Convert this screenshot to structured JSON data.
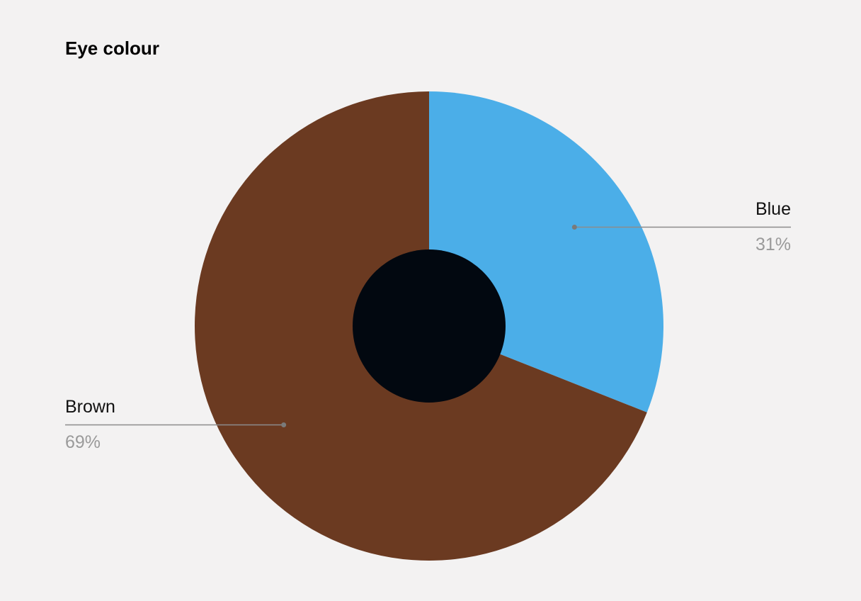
{
  "chart_data": {
    "type": "pie",
    "title": "Eye colour",
    "categories": [
      "Blue",
      "Brown"
    ],
    "values": [
      31,
      69
    ],
    "value_labels": [
      "31%",
      "69%"
    ],
    "colors": [
      "#4baee8",
      "#6b3a21"
    ]
  }
}
